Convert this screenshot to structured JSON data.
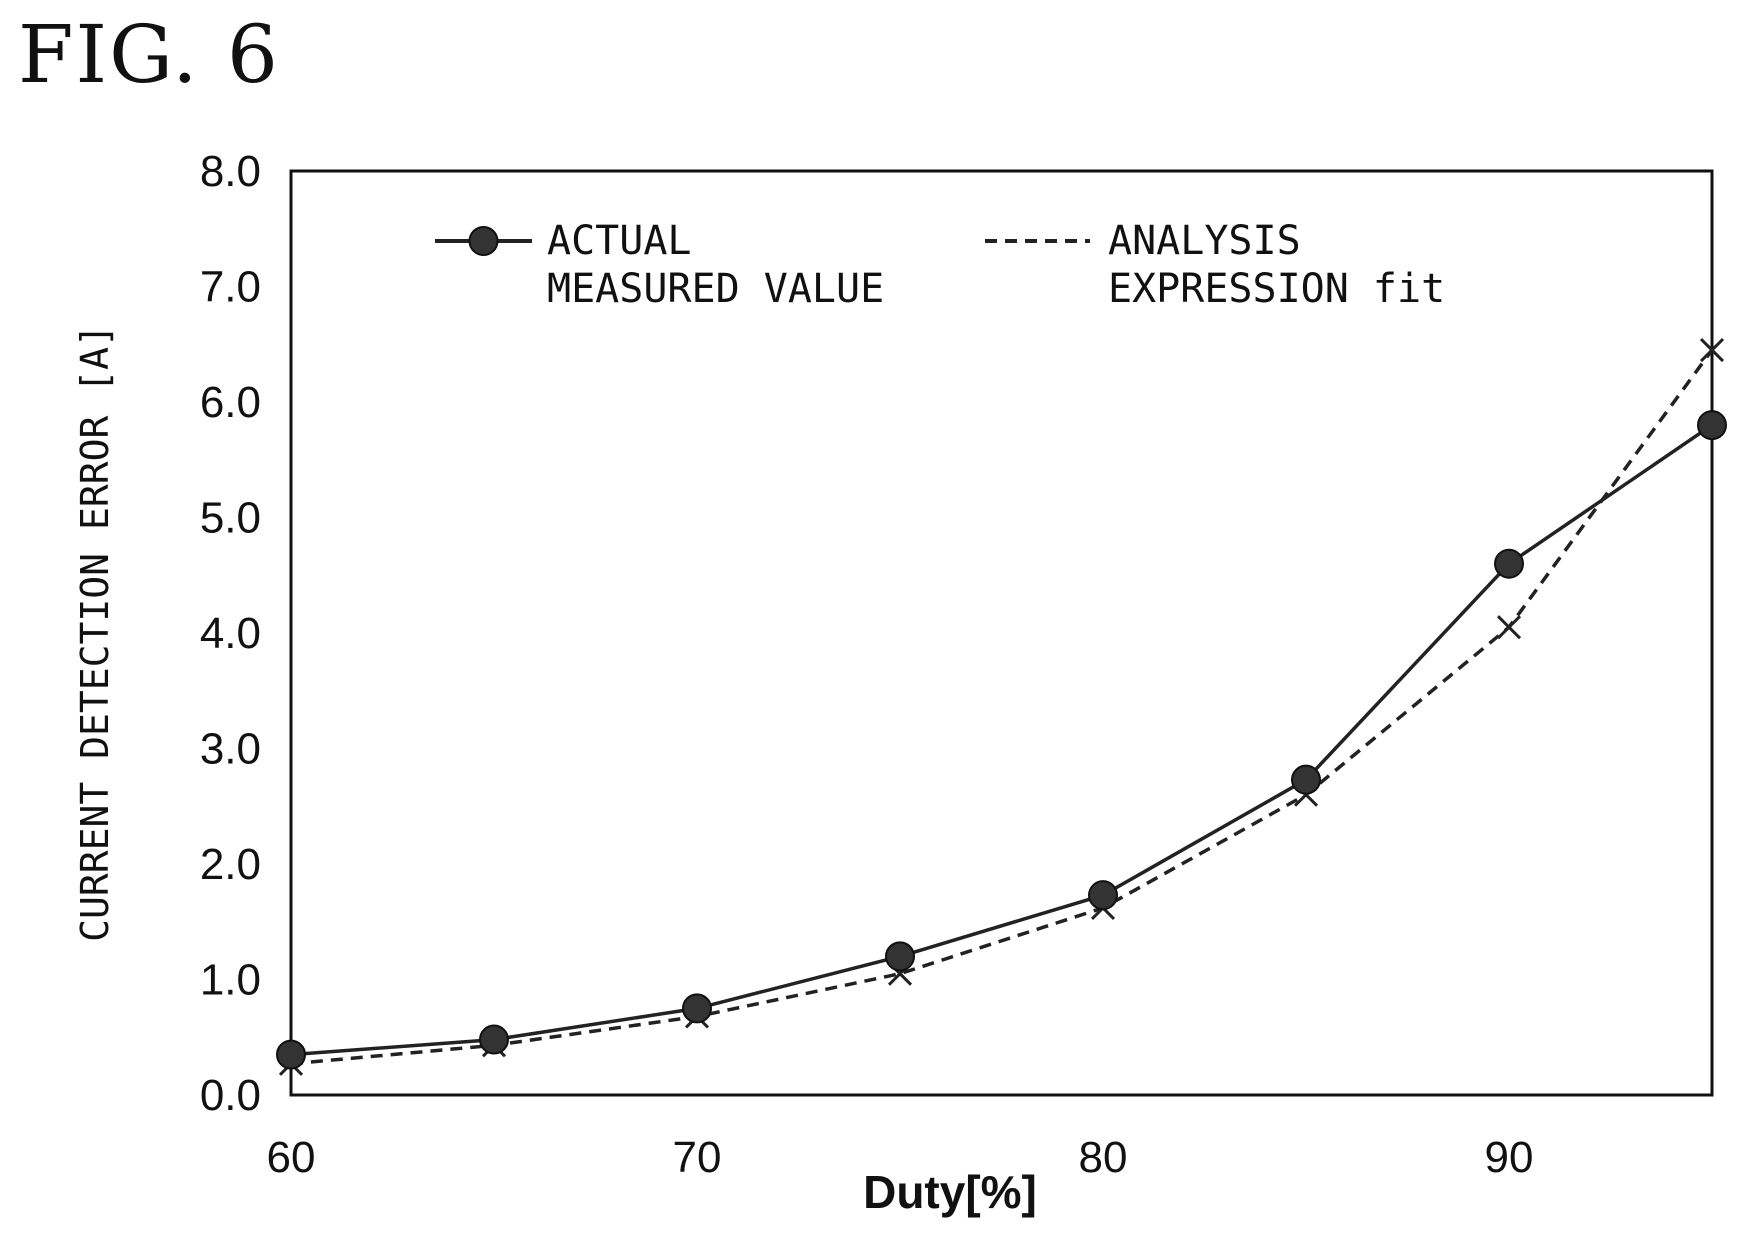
{
  "figure_title": "FIG. 6",
  "chart_data": {
    "type": "line",
    "xlabel": "Duty[%]",
    "ylabel": "CURRENT DETECTION ERROR [A]",
    "xlim": [
      60,
      95
    ],
    "ylim": [
      0,
      8
    ],
    "x_ticks": [
      "60",
      "70",
      "80",
      "90"
    ],
    "y_ticks": [
      "0.0",
      "1.0",
      "2.0",
      "3.0",
      "4.0",
      "5.0",
      "6.0",
      "7.0",
      "8.0"
    ],
    "grid": false,
    "legend_position": "top",
    "series": [
      {
        "name_lines": [
          "ACTUAL",
          "MEASURED VALUE"
        ],
        "style": "solid",
        "marker": "circle",
        "color": "#222222",
        "x": [
          60,
          65,
          70,
          75,
          80,
          85,
          90,
          95
        ],
        "y": [
          0.35,
          0.48,
          0.75,
          1.2,
          1.73,
          2.73,
          4.6,
          5.8
        ]
      },
      {
        "name_lines": [
          "ANALYSIS",
          "EXPRESSION fit"
        ],
        "style": "dashed",
        "marker": "x",
        "color": "#222222",
        "x": [
          60,
          65,
          70,
          75,
          80,
          85,
          90,
          95
        ],
        "y": [
          0.27,
          0.43,
          0.68,
          1.05,
          1.62,
          2.6,
          4.05,
          6.45
        ]
      }
    ]
  }
}
